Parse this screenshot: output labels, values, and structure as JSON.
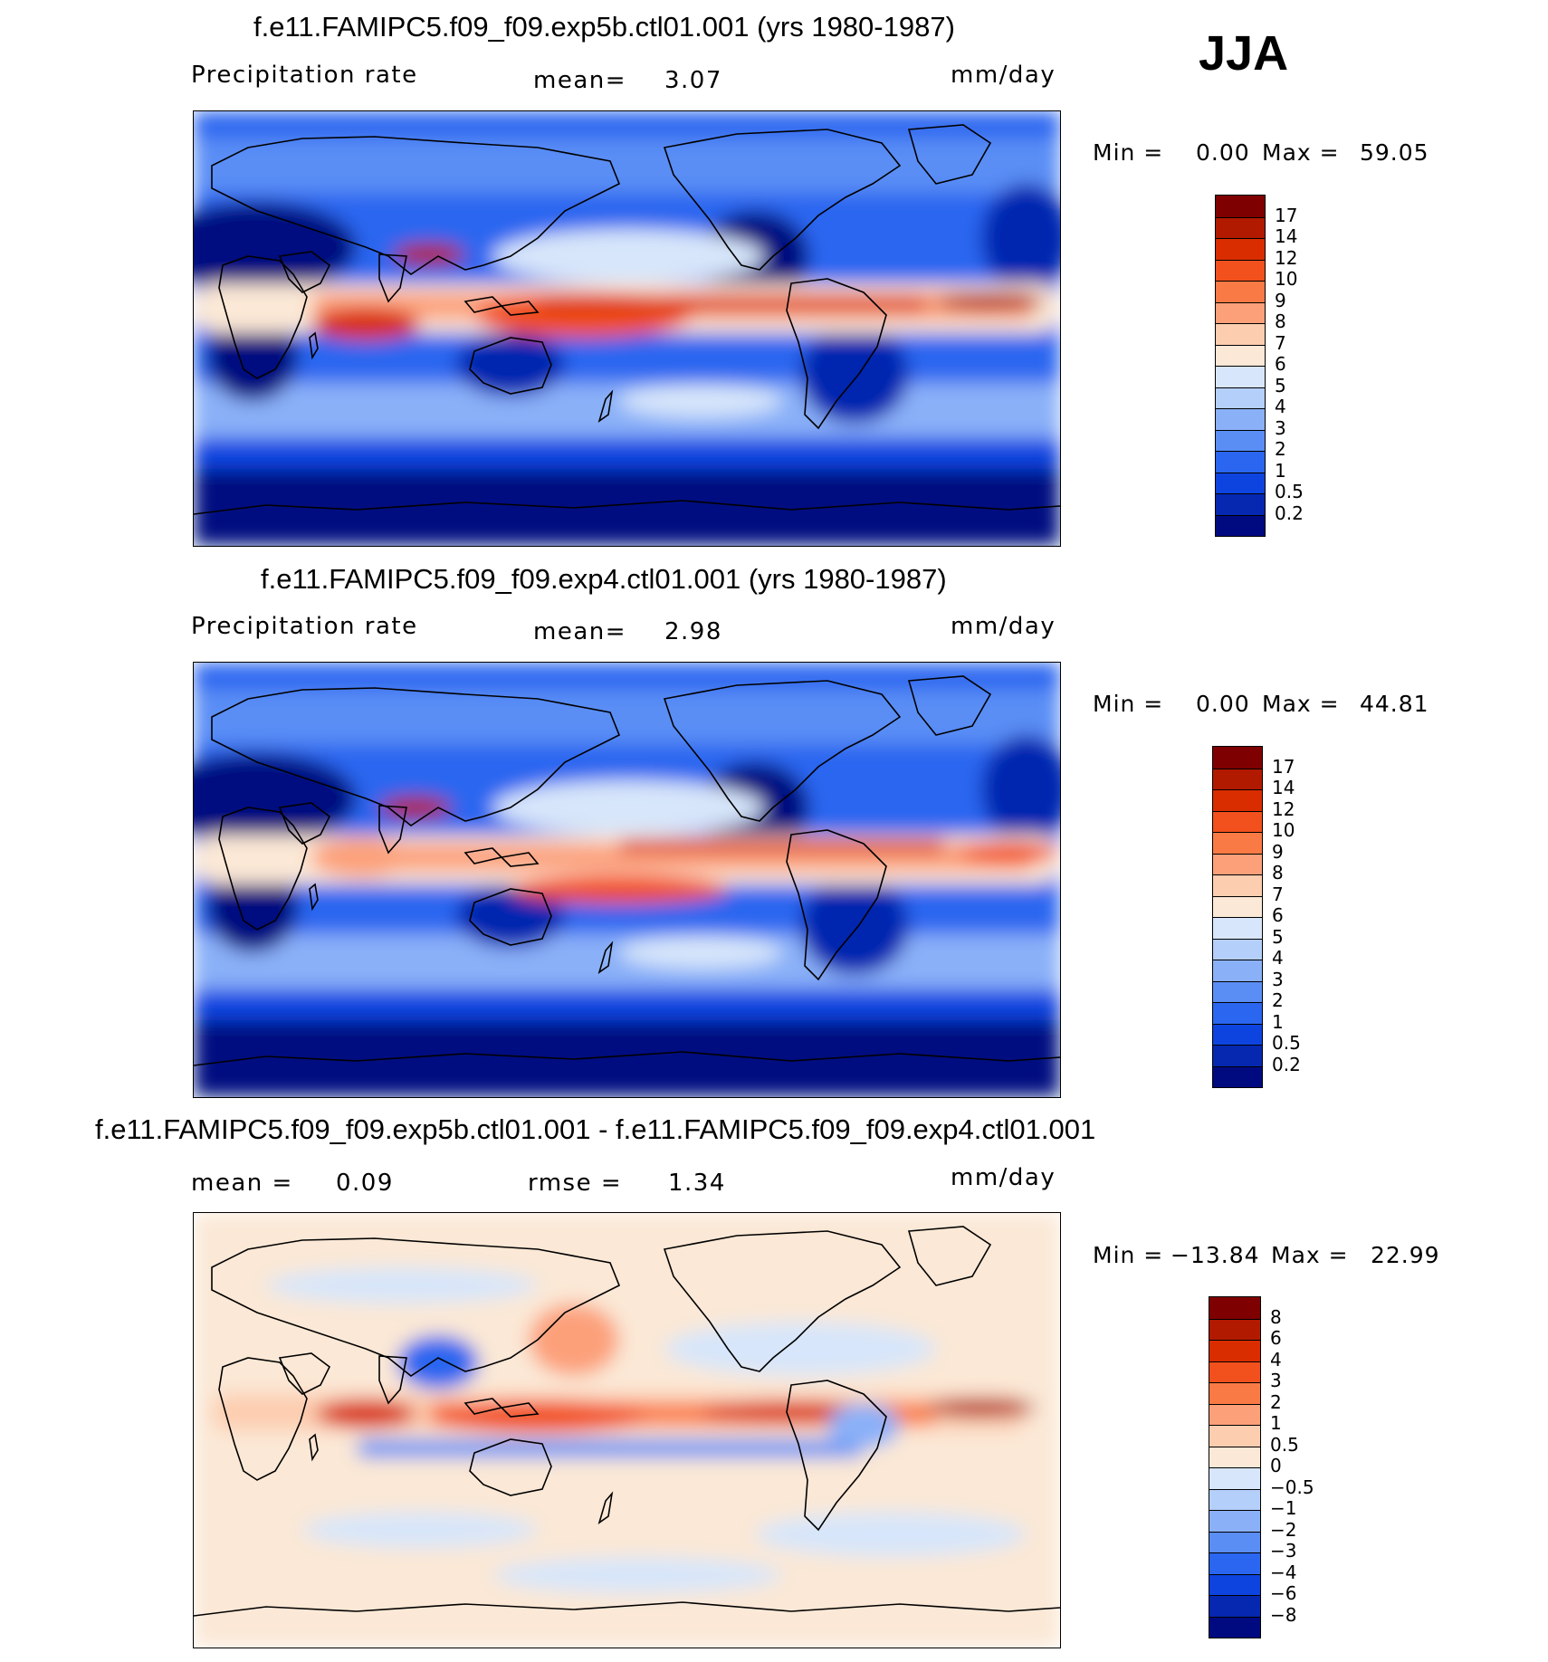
{
  "season": "JJA",
  "panels": [
    {
      "title": "f.e11.FAMIPC5.f09_f09.exp5b.ctl01.001 (yrs 1980-1987)",
      "left_label": "Precipitation rate",
      "stat_label": "mean=",
      "stat_value": "3.07",
      "units": "mm/day",
      "min_label": "Min =",
      "min_value": "0.00",
      "max_label": "Max =",
      "max_value": "59.05",
      "colorbar": {
        "labels": [
          "17",
          "14",
          "12",
          "10",
          "9",
          "8",
          "7",
          "6",
          "5",
          "4",
          "3",
          "2",
          "1",
          "0.5",
          "0.2"
        ],
        "colors": [
          "#7f0000",
          "#b21a00",
          "#d92d00",
          "#f2501d",
          "#fa7a45",
          "#fca07a",
          "#fdcdb0",
          "#fbe8d6",
          "#d7e6fa",
          "#b4cffa",
          "#8ab0f8",
          "#5a8ef5",
          "#2a66f0",
          "#0d44e0",
          "#0628b0",
          "#000a80"
        ]
      }
    },
    {
      "title": "f.e11.FAMIPC5.f09_f09.exp4.ctl01.001 (yrs 1980-1987)",
      "left_label": "Precipitation rate",
      "stat_label": "mean=",
      "stat_value": "2.98",
      "units": "mm/day",
      "min_label": "Min =",
      "min_value": "0.00",
      "max_label": "Max =",
      "max_value": "44.81",
      "colorbar": {
        "labels": [
          "17",
          "14",
          "12",
          "10",
          "9",
          "8",
          "7",
          "6",
          "5",
          "4",
          "3",
          "2",
          "1",
          "0.5",
          "0.2"
        ],
        "colors": [
          "#7f0000",
          "#b21a00",
          "#d92d00",
          "#f2501d",
          "#fa7a45",
          "#fca07a",
          "#fdcdb0",
          "#fbe8d6",
          "#d7e6fa",
          "#b4cffa",
          "#8ab0f8",
          "#5a8ef5",
          "#2a66f0",
          "#0d44e0",
          "#0628b0",
          "#000a80"
        ]
      }
    },
    {
      "title": "f.e11.FAMIPC5.f09_f09.exp5b.ctl01.001 - f.e11.FAMIPC5.f09_f09.exp4.ctl01.001",
      "left_label": "mean =",
      "left_value": "0.09",
      "stat_label": "rmse =",
      "stat_value": "1.34",
      "units": "mm/day",
      "min_label": "Min =",
      "min_value": "−13.84",
      "max_label": "Max =",
      "max_value": "22.99",
      "colorbar": {
        "labels": [
          "8",
          "6",
          "4",
          "3",
          "2",
          "1",
          "0.5",
          "0",
          "−0.5",
          "−1",
          "−2",
          "−3",
          "−4",
          "−6",
          "−8"
        ],
        "colors": [
          "#7f0000",
          "#b21a00",
          "#d92d00",
          "#f2501d",
          "#fa7a45",
          "#fca07a",
          "#fdcdb0",
          "#fbe8d6",
          "#d7e6fa",
          "#b4cffa",
          "#8ab0f8",
          "#5a8ef5",
          "#2a66f0",
          "#0d44e0",
          "#0628b0",
          "#000a80"
        ]
      }
    }
  ]
}
